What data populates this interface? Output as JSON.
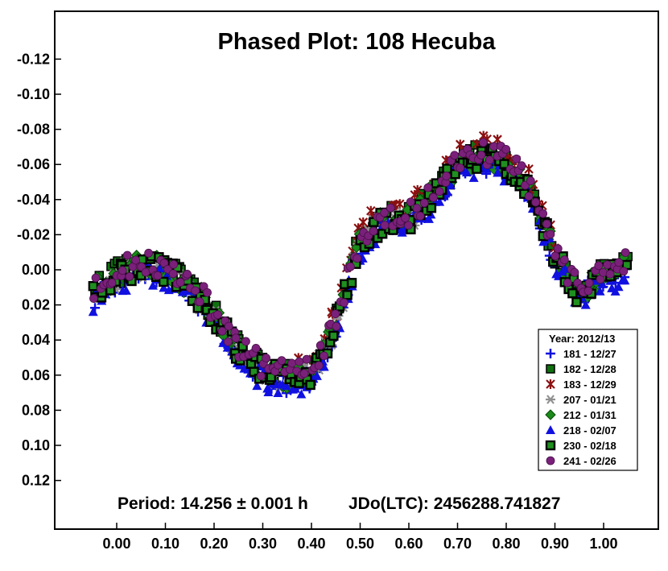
{
  "chart_data": {
    "type": "scatter",
    "title": "Phased Plot: 108 Hecuba",
    "footer_left": "Period: 14.256 ± 0.001 h",
    "footer_right": "JDo(LTC): 2456288.741827",
    "xlabel": "",
    "ylabel": "",
    "xlim": [
      -0.12,
      1.08
    ],
    "ylim": [
      0.145,
      -0.145
    ],
    "y_inverted": true,
    "grid": false,
    "legend_placement": "lower-right",
    "legend_title": "Year: 2012/13",
    "x_ticks": [
      "0.00",
      "0.10",
      "0.20",
      "0.30",
      "0.40",
      "0.50",
      "0.60",
      "0.70",
      "0.80",
      "0.90",
      "1.00"
    ],
    "y_ticks": [
      "-0.12",
      "-0.10",
      "-0.08",
      "-0.06",
      "-0.04",
      "-0.02",
      "0.00",
      "0.02",
      "0.04",
      "0.06",
      "0.08",
      "0.10",
      "0.12"
    ],
    "x_tick_values": [
      0,
      0.1,
      0.2,
      0.3,
      0.4,
      0.5,
      0.6,
      0.7,
      0.8,
      0.9,
      1.0
    ],
    "y_tick_values": [
      -0.12,
      -0.1,
      -0.08,
      -0.06,
      -0.04,
      -0.02,
      0,
      0.02,
      0.04,
      0.06,
      0.08,
      0.1,
      0.12
    ],
    "curve": {
      "phase": [
        -0.05,
        0.0,
        0.05,
        0.1,
        0.15,
        0.2,
        0.25,
        0.3,
        0.35,
        0.4,
        0.45,
        0.5,
        0.55,
        0.6,
        0.65,
        0.7,
        0.75,
        0.8,
        0.85,
        0.9,
        0.95,
        1.0,
        1.05
      ],
      "mag": [
        0.012,
        0.002,
        -0.004,
        -0.002,
        0.008,
        0.024,
        0.044,
        0.056,
        0.06,
        0.058,
        0.03,
        -0.018,
        -0.03,
        -0.03,
        -0.044,
        -0.06,
        -0.066,
        -0.062,
        -0.046,
        -0.01,
        0.012,
        0.002,
        -0.003
      ]
    },
    "series": [
      {
        "name": "181 - 12/27",
        "marker": "plus",
        "color": "#1010e0",
        "phase_range": [
          -0.05,
          1.05
        ],
        "offset": 0.004
      },
      {
        "name": "182 - 12/28",
        "marker": "square",
        "color": "#107010",
        "phase_range": [
          -0.05,
          1.05
        ],
        "offset": 0.0
      },
      {
        "name": "183 - 12/29",
        "marker": "x",
        "color": "#8b1010",
        "phase_range": [
          0.35,
          0.9
        ],
        "offset": -0.004
      },
      {
        "name": "207 - 01/21",
        "marker": "asterisk",
        "color": "#909090",
        "phase_range": [
          -0.03,
          0.62
        ],
        "offset": 0.002
      },
      {
        "name": "212 - 01/31",
        "marker": "diamond",
        "color": "#1a8a1a",
        "phase_range": [
          -0.05,
          1.05
        ],
        "offset": 0.001
      },
      {
        "name": "218 - 02/07",
        "marker": "triangle",
        "color": "#1010e0",
        "phase_range": [
          -0.05,
          1.05
        ],
        "offset": 0.006
      },
      {
        "name": "230 - 02/18",
        "marker": "dsquare",
        "color": "#1f8f1f",
        "phase_range": [
          -0.05,
          1.05
        ],
        "offset": 0.002
      },
      {
        "name": "241 - 02/26",
        "marker": "circle",
        "color": "#7a207a",
        "phase_range": [
          -0.05,
          1.05
        ],
        "offset": -0.001
      }
    ]
  }
}
